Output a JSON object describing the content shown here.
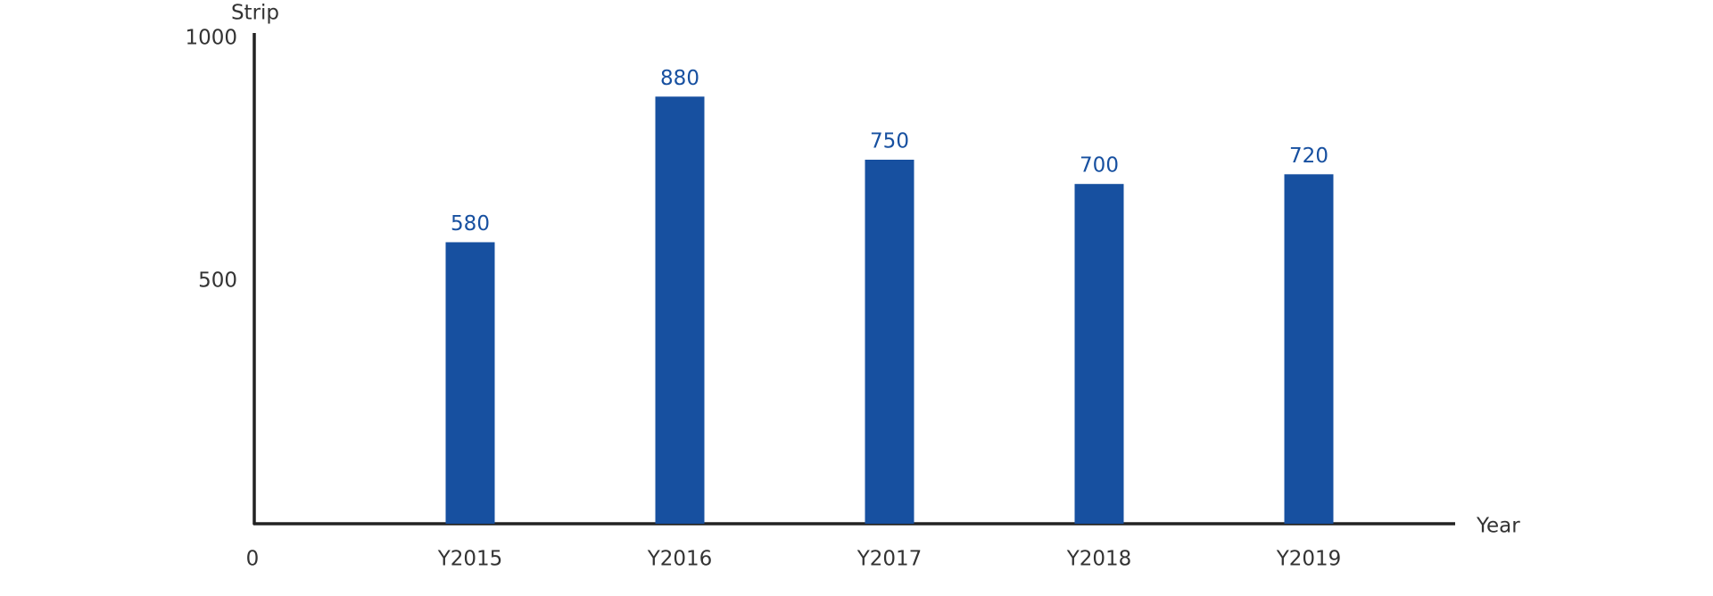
{
  "chart_data": {
    "type": "bar",
    "y_label": "Strip",
    "x_label": "Year",
    "categories": [
      "Y2015",
      "Y2016",
      "Y2017",
      "Y2018",
      "Y2019"
    ],
    "values": [
      580,
      880,
      750,
      700,
      720
    ],
    "color": "#1750a0",
    "ylim": [
      0,
      1000
    ],
    "yticks": [
      0,
      500,
      1000
    ],
    "grid": false
  }
}
